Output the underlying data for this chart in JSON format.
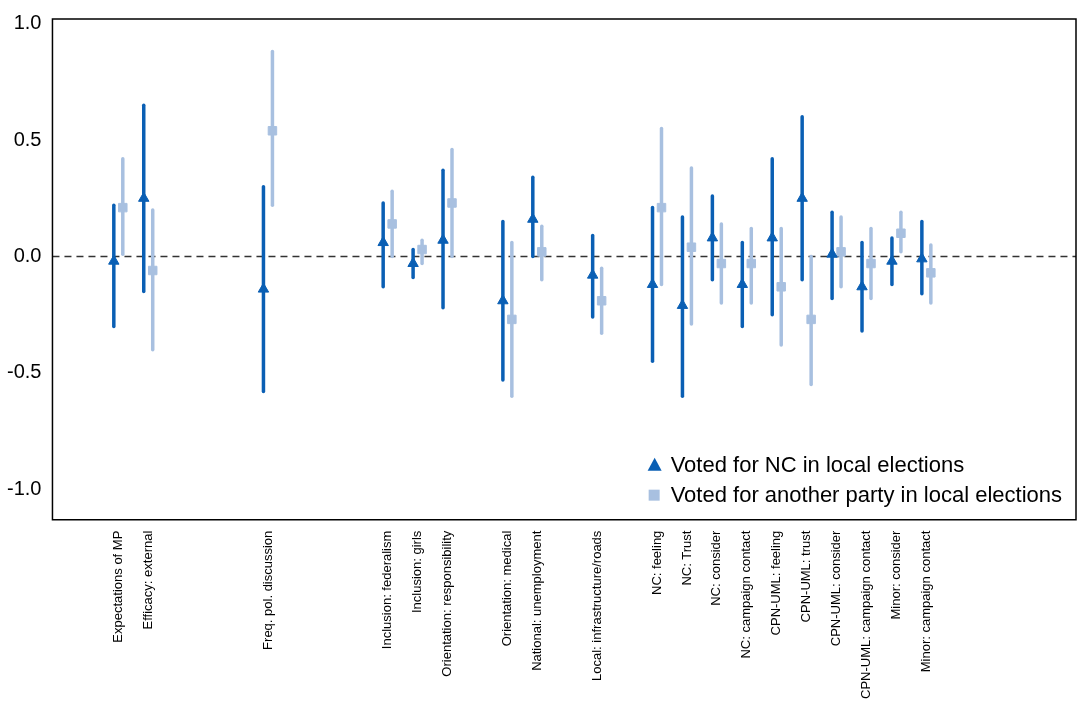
{
  "chart_data": {
    "type": "scatter",
    "categories": [
      null,
      null,
      "Expectations of MP",
      "Efficacy: external",
      null,
      null,
      null,
      "Freq. pol. discussion",
      null,
      null,
      null,
      "Inclusion: federalism",
      "Inclusion: girls",
      "Orientation: responsibility",
      null,
      "Orientation: medical",
      "National: unemployment",
      null,
      "Local: infrastructure/roads",
      null,
      "NC: feeling",
      "NC: Trust",
      "NC: consider",
      "NC: campaign contact",
      "CPN-UML: feeling",
      "CPN-UML: trust",
      "CPN-UML: consider",
      "CPN-UML: campaign contact",
      "Minor: consider",
      "Minor: campaign contact",
      null,
      null,
      null,
      null
    ],
    "series": [
      {
        "name": "Voted for NC in local elections",
        "color": "#0a5fb4",
        "marker": "triangle",
        "values": [
          null,
          null,
          -0.02,
          0.25,
          null,
          null,
          null,
          -0.14,
          null,
          null,
          null,
          0.06,
          -0.03,
          0.07,
          null,
          -0.19,
          0.16,
          null,
          -0.08,
          null,
          -0.12,
          -0.21,
          0.08,
          -0.12,
          0.08,
          0.25,
          0.01,
          -0.13,
          -0.02,
          -0.01,
          null,
          null,
          null,
          null
        ],
        "errors": [
          null,
          null,
          [
            -0.3,
            0.22
          ],
          [
            -0.15,
            0.65
          ],
          null,
          null,
          null,
          [
            -0.58,
            0.3
          ],
          null,
          null,
          null,
          [
            -0.13,
            0.23
          ],
          [
            -0.09,
            0.03
          ],
          [
            -0.22,
            0.37
          ],
          null,
          [
            -0.53,
            0.15
          ],
          [
            0.0,
            0.34
          ],
          null,
          [
            -0.26,
            0.09
          ],
          null,
          [
            -0.45,
            0.21
          ],
          [
            -0.6,
            0.17
          ],
          [
            -0.1,
            0.26
          ],
          [
            -0.3,
            0.06
          ],
          [
            -0.25,
            0.42
          ],
          [
            -0.1,
            0.6
          ],
          [
            -0.18,
            0.19
          ],
          [
            -0.32,
            0.06
          ],
          [
            -0.12,
            0.08
          ],
          [
            -0.16,
            0.15
          ],
          null,
          null,
          null,
          null
        ]
      },
      {
        "name": "Voted for another party in local elections",
        "color": "#a8c0e0",
        "marker": "square",
        "values": [
          null,
          null,
          0.21,
          -0.06,
          null,
          null,
          null,
          0.54,
          null,
          null,
          null,
          0.14,
          0.03,
          0.23,
          null,
          -0.27,
          0.02,
          null,
          -0.19,
          null,
          0.21,
          0.04,
          -0.03,
          -0.03,
          -0.13,
          -0.27,
          0.02,
          -0.03,
          0.1,
          -0.07,
          null,
          null,
          null,
          null
        ],
        "errors": [
          null,
          null,
          [
            0.01,
            0.42
          ],
          [
            -0.4,
            0.2
          ],
          null,
          null,
          null,
          [
            0.22,
            0.88
          ],
          null,
          null,
          null,
          [
            0.0,
            0.28
          ],
          [
            -0.03,
            0.07
          ],
          [
            0.0,
            0.46
          ],
          null,
          [
            -0.6,
            0.06
          ],
          [
            -0.1,
            0.13
          ],
          null,
          [
            -0.33,
            -0.05
          ],
          null,
          [
            -0.12,
            0.55
          ],
          [
            -0.29,
            0.38
          ],
          [
            -0.2,
            0.14
          ],
          [
            -0.2,
            0.12
          ],
          [
            -0.38,
            0.12
          ],
          [
            -0.55,
            0.0
          ],
          [
            -0.13,
            0.17
          ],
          [
            -0.18,
            0.12
          ],
          [
            0.02,
            0.19
          ],
          [
            -0.2,
            0.05
          ],
          null,
          null,
          null,
          null
        ]
      }
    ],
    "ylim": [
      -1.13,
      1.02
    ],
    "yticks": [
      {
        "value": -1,
        "label": "-1.0"
      },
      {
        "value": -0.5,
        "label": "-0.5"
      },
      {
        "value": 0,
        "label": "0.0"
      },
      {
        "value": 0.5,
        "label": "0.5"
      },
      {
        "value": 1,
        "label": "1.0"
      }
    ],
    "ref_lines": [
      {
        "axis": "y",
        "value": 0,
        "line_style": "dashed",
        "color": "#333333"
      }
    ],
    "grid": false,
    "legend": "bottom right"
  }
}
